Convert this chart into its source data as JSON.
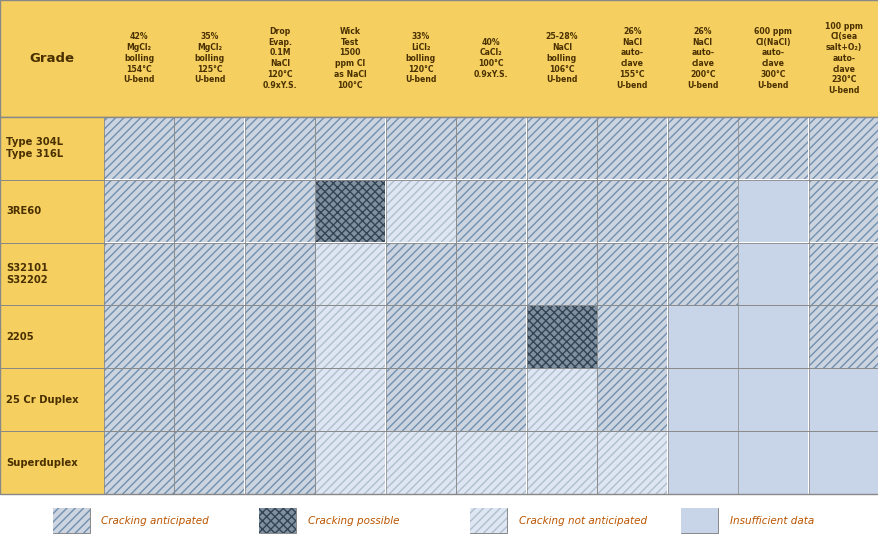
{
  "background_color": "#ffffff",
  "header_bg": "#f5d060",
  "row_label_bg": "#f5d060",
  "border_color": "#888888",
  "text_color_header": "#4a3000",
  "text_color_row": "#4a3000",
  "columns": [
    "42%\nMgCl₂\nbolling\n154°C\nU-bend",
    "35%\nMgCl₂\nbolling\n125°C\nU-bend",
    "Drop\nEvap.\n0.1M\nNaCl\n120°C\n0.9xY.S.",
    "Wick\nTest\n1500\nppm Cl\nas NaCl\n100°C",
    "33%\nLiCl₂\nbolling\n120°C\nU-bend",
    "40%\nCaCl₂\n100°C\n0.9xY.S.",
    "25-28%\nNaCl\nbolling\n106°C\nU-bend",
    "26%\nNaCl\nauto-\nclave\n155°C\nU-bend",
    "26%\nNaCl\nauto-\nclave\n200°C\nU-bend",
    "600 ppm\nCl(NaCl)\nauto-\nclave\n300°C\nU-bend",
    "100 ppm\nCl(sea\nsalt+O₂)\nauto-\nclave\n230°C\nU-bend"
  ],
  "rows": [
    "Type 304L\nType 316L",
    "3RE60",
    "S32101\nS32202",
    "2205",
    "25 Cr Duplex",
    "Superduplex"
  ],
  "cell_data": [
    [
      "A",
      "A",
      "A",
      "A",
      "A",
      "A",
      "A",
      "A",
      "A",
      "A",
      "A"
    ],
    [
      "A",
      "A",
      "A",
      "P",
      "N",
      "A",
      "A",
      "A",
      "A",
      "I",
      "A"
    ],
    [
      "A",
      "A",
      "A",
      "N",
      "A",
      "A",
      "A",
      "A",
      "A",
      "I",
      "A"
    ],
    [
      "A",
      "A",
      "A",
      "N",
      "A",
      "A",
      "P",
      "A",
      "I",
      "I",
      "A"
    ],
    [
      "A",
      "A",
      "A",
      "N",
      "A",
      "A",
      "N",
      "A",
      "I",
      "I",
      "I"
    ],
    [
      "A",
      "A",
      "A",
      "N",
      "N",
      "N",
      "N",
      "N",
      "I",
      "I",
      "I"
    ]
  ],
  "legend_items": [
    {
      "label": "Cracking anticipated",
      "code": "A"
    },
    {
      "label": "Cracking possible",
      "code": "P"
    },
    {
      "label": "Cracking not anticipated",
      "code": "N"
    },
    {
      "label": "Insufficient data",
      "code": "I"
    }
  ]
}
